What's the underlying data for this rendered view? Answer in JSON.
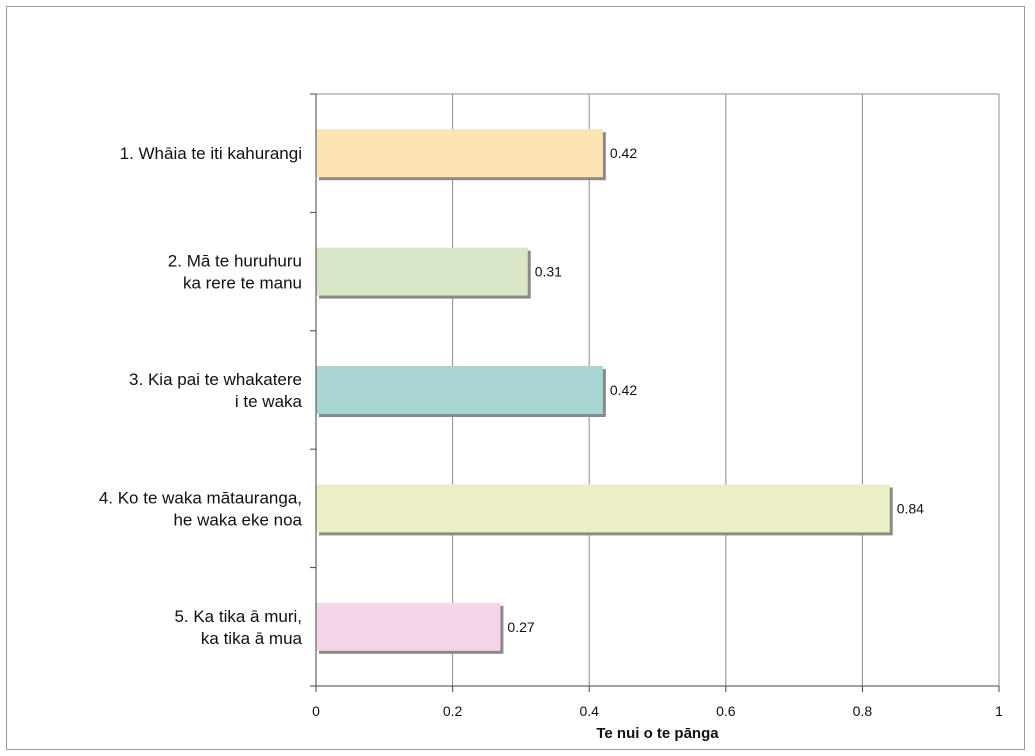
{
  "chart_data": {
    "type": "bar",
    "orientation": "horizontal",
    "categories": [
      [
        "1.  Whāia te iti kahurangi"
      ],
      [
        "2.  Mā te huruhuru",
        "ka rere te manu"
      ],
      [
        "3.  Kia pai te whakatere",
        "i te waka"
      ],
      [
        "4.  Ko te waka mātauranga,",
        "he waka eke noa"
      ],
      [
        "5.  Ka tika ā muri,",
        "ka tika ā mua"
      ]
    ],
    "values": [
      0.42,
      0.31,
      0.42,
      0.84,
      0.27
    ],
    "value_labels": [
      "0.42",
      "0.31",
      "0.42",
      "0.84",
      "0.27"
    ],
    "bar_colors": [
      "#fde4b4",
      "#d8e6c5",
      "#a9d6d3",
      "#ecefc6",
      "#f5d5e7"
    ],
    "xlim": [
      0,
      1
    ],
    "x_ticks": [
      0,
      0.2,
      0.4,
      0.6,
      0.8,
      1
    ],
    "x_tick_labels": [
      "0",
      "0.2",
      "0.4",
      "0.6",
      "0.8",
      "1"
    ],
    "xlabel": "Te nui o te pānga",
    "grid": true
  }
}
